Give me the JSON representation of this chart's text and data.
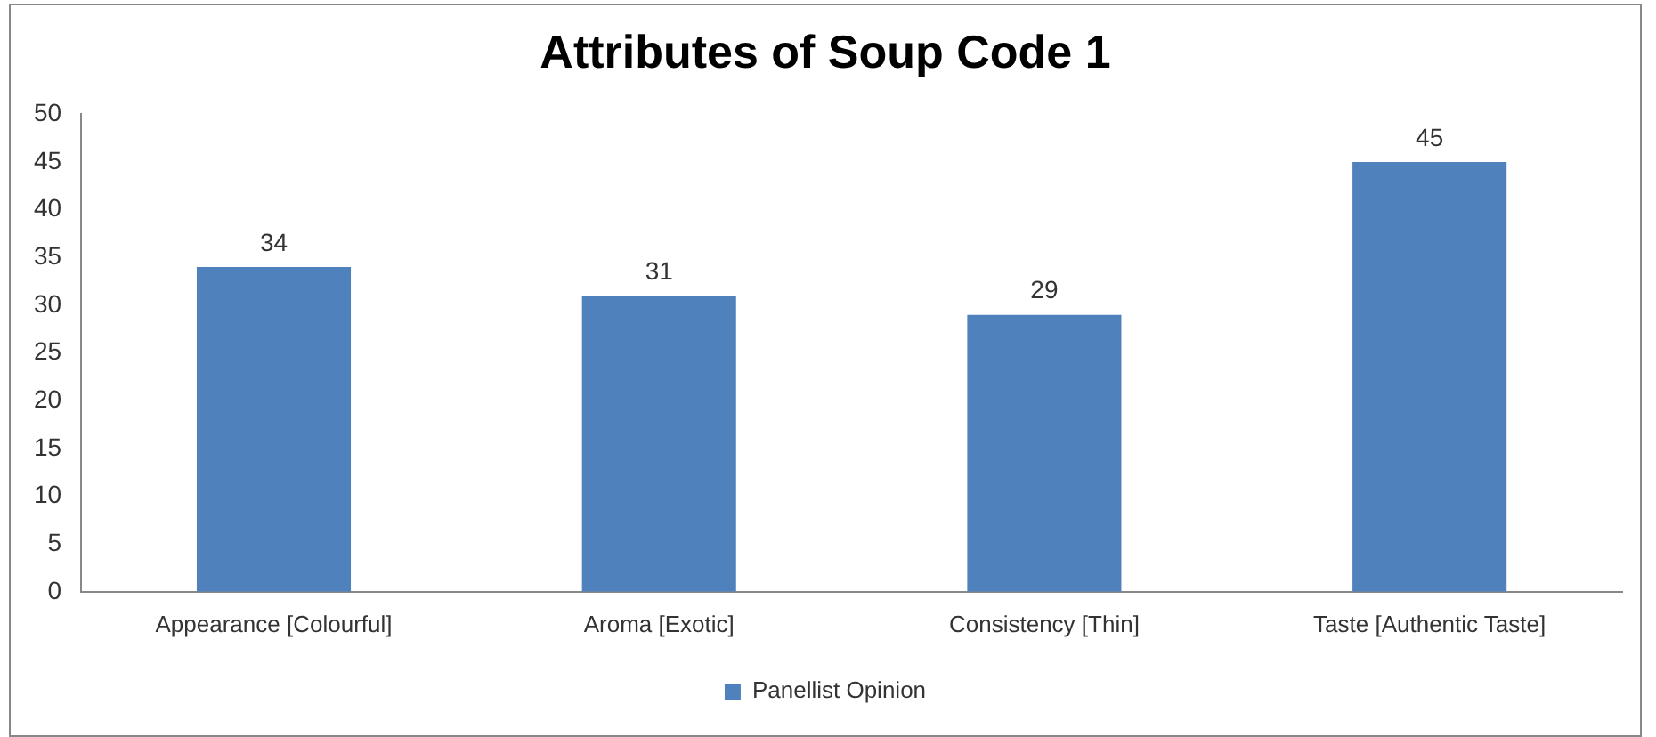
{
  "chart_data": {
    "type": "bar",
    "title": "Attributes of Soup Code 1",
    "categories": [
      "Appearance [Colourful]",
      "Aroma [Exotic]",
      "Consistency [Thin]",
      "Taste [Authentic Taste]"
    ],
    "series": [
      {
        "name": "Panellist Opinion",
        "color": "#4f81bd",
        "values": [
          34,
          31,
          29,
          45
        ]
      }
    ],
    "ylim": [
      0,
      50
    ],
    "yticks": [
      0,
      5,
      10,
      15,
      20,
      25,
      30,
      35,
      40,
      45,
      50
    ],
    "grid": false,
    "legend": "bottom",
    "data_labels": true
  }
}
